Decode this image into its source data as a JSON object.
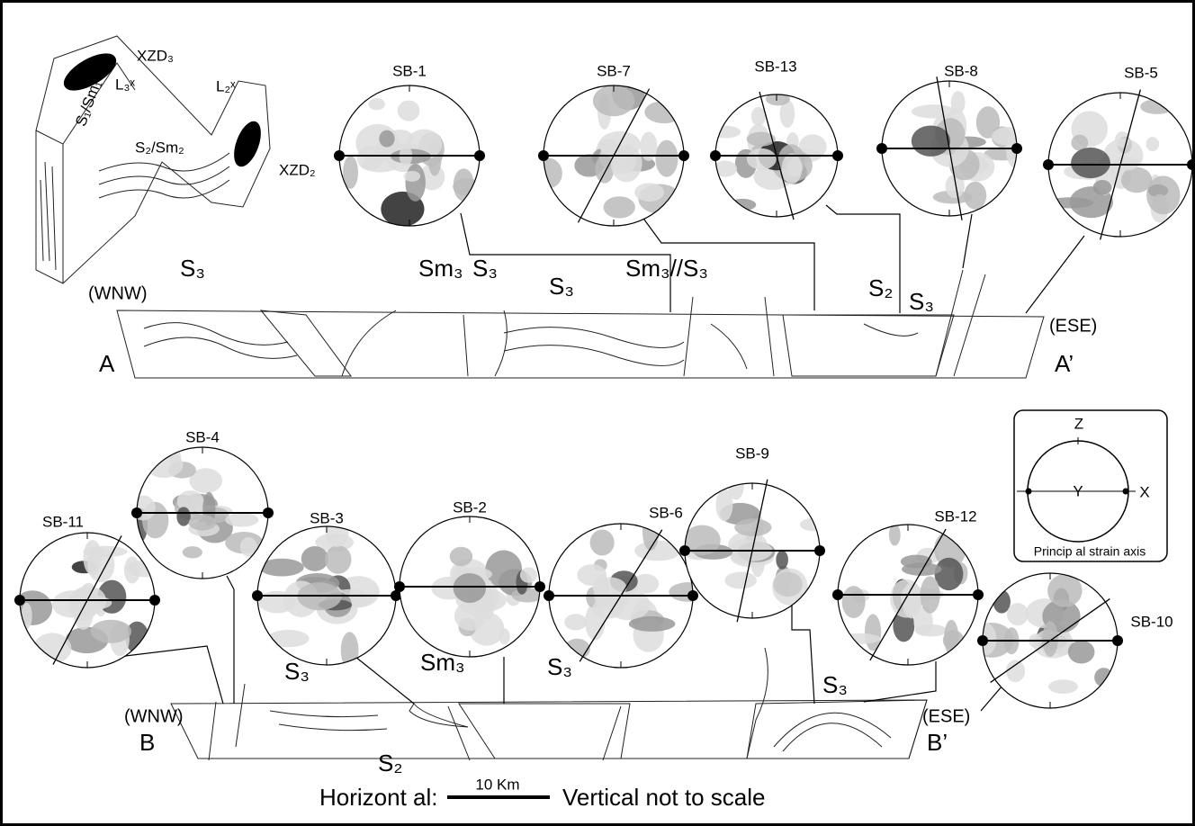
{
  "block_diagram": {
    "labels": [
      "XZD₃",
      "L₃ˣ",
      "L₂ˣ",
      "XZD₂",
      "S₂/Sm₂",
      "S₁/Sm₁"
    ]
  },
  "stereonets": [
    {
      "label": "SB-1"
    },
    {
      "label": "SB-7"
    },
    {
      "label": "SB-13"
    },
    {
      "label": "SB-8"
    },
    {
      "label": "SB-5"
    },
    {
      "label": "SB-4"
    },
    {
      "label": "SB-11"
    },
    {
      "label": "SB-3"
    },
    {
      "label": "SB-2"
    },
    {
      "label": "SB-6"
    },
    {
      "label": "SB-9"
    },
    {
      "label": "SB-12"
    },
    {
      "label": "SB-10"
    }
  ],
  "section_a": {
    "start": "A",
    "end": "A’",
    "west": "(WNW)",
    "east": "(ESE)",
    "labels": [
      "S₃",
      "Sm₃",
      "S₃",
      "S₃",
      "Sm₃//S₃",
      "S₂",
      "S₃"
    ]
  },
  "section_b": {
    "start": "B",
    "end": "B’",
    "west": "(WNW)",
    "east": "(ESE)",
    "labels": [
      "S₃",
      "Sm₃",
      "S₃",
      "S₃",
      "S₂"
    ]
  },
  "legend": {
    "z": "Z",
    "y": "Y",
    "x": "X",
    "caption": "Princip al strain axis"
  },
  "scale": {
    "horizontal": "Horizont al:",
    "bar": "10 Km",
    "vertical": "Vertical not to scale"
  }
}
